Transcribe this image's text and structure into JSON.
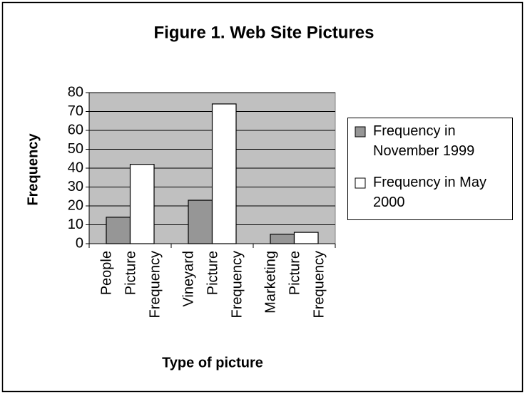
{
  "chart_data": {
    "type": "bar",
    "title": "Figure 1.  Web Site Pictures",
    "x_label": "Type of picture",
    "y_label": "Frequency",
    "categories": [
      [
        "People",
        "Picture",
        "Frequency"
      ],
      [
        "Vineyard",
        "Picture",
        "Frequency"
      ],
      [
        "Marketing",
        "Picture",
        "Frequency"
      ]
    ],
    "series": [
      {
        "name": "Frequency in November 1999",
        "color": "#969696",
        "values": [
          14,
          23,
          5
        ]
      },
      {
        "name": "Frequency in May 2000",
        "color": "#ffffff",
        "values": [
          42,
          74,
          6
        ]
      }
    ],
    "ylim": [
      0,
      80
    ],
    "yticks": [
      0,
      10,
      20,
      30,
      40,
      50,
      60,
      70,
      80
    ],
    "grid": true,
    "legend": "right"
  }
}
